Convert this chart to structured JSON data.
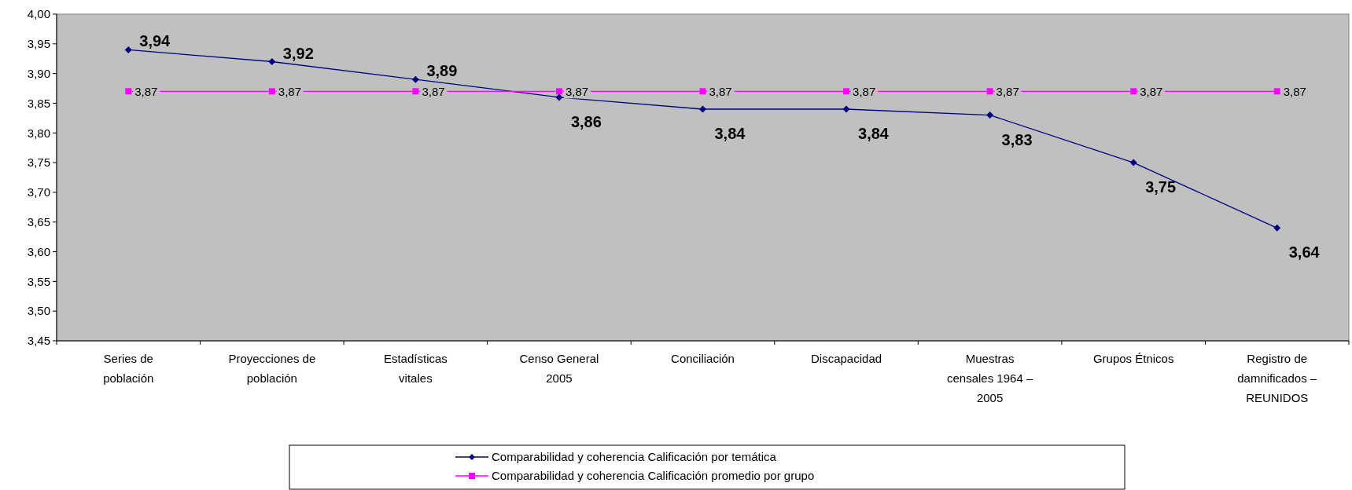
{
  "chart_data": {
    "type": "line",
    "categories": [
      "Series de población",
      "Proyecciones de población",
      "Estadísticas vitales",
      "Censo General 2005",
      "Conciliación",
      "Discapacidad",
      "Muestras censales 1964 – 2005",
      "Grupos Étnicos",
      "Registro de damnificados – REUNIDOS"
    ],
    "series": [
      {
        "name": "Comparabilidad y coherencia Calificación por temática",
        "color": "#000080",
        "marker": "diamond",
        "values": [
          3.94,
          3.92,
          3.89,
          3.86,
          3.84,
          3.84,
          3.83,
          3.75,
          3.64
        ],
        "value_labels": [
          "3,94",
          "3,92",
          "3,89",
          "3,86",
          "3,84",
          "3,84",
          "3,83",
          "3,75",
          "3,64"
        ]
      },
      {
        "name": "Comparabilidad y coherencia Calificación promedio por grupo",
        "color": "#ff00ff",
        "marker": "square",
        "values": [
          3.87,
          3.87,
          3.87,
          3.87,
          3.87,
          3.87,
          3.87,
          3.87,
          3.87
        ],
        "value_labels": [
          "3,87",
          "3,87",
          "3,87",
          "3,87",
          "3,87",
          "3,87",
          "3,87",
          "3,87",
          "3,87"
        ]
      }
    ],
    "ylim": [
      3.45,
      4.0
    ],
    "yticks": [
      {
        "value": 3.45,
        "label": "3,45"
      },
      {
        "value": 3.5,
        "label": "3,50"
      },
      {
        "value": 3.55,
        "label": "3,55"
      },
      {
        "value": 3.6,
        "label": "3,60"
      },
      {
        "value": 3.65,
        "label": "3,65"
      },
      {
        "value": 3.7,
        "label": "3,70"
      },
      {
        "value": 3.75,
        "label": "3,75"
      },
      {
        "value": 3.8,
        "label": "3,80"
      },
      {
        "value": 3.85,
        "label": "3,85"
      },
      {
        "value": 3.9,
        "label": "3,90"
      },
      {
        "value": 3.95,
        "label": "3,95"
      },
      {
        "value": 4.0,
        "label": "4,00"
      }
    ],
    "legend": "bottom",
    "line_style": "solid"
  }
}
